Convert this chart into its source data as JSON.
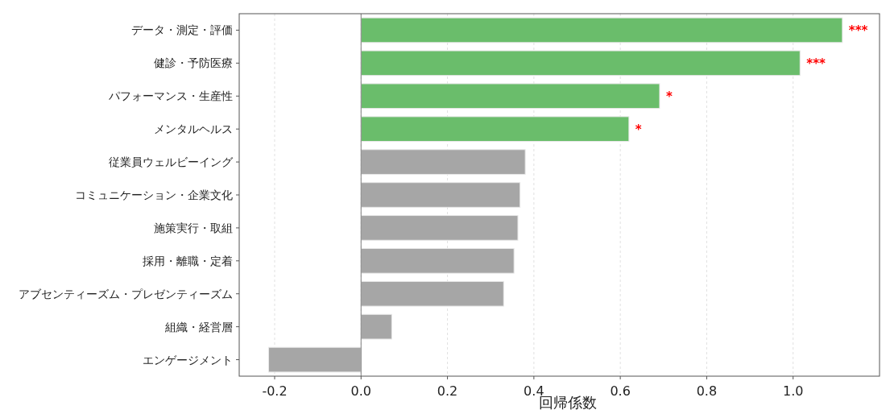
{
  "chart_data": {
    "type": "bar",
    "orientation": "horizontal",
    "xlabel": "回帰係数",
    "categories": [
      "データ・測定・評価",
      "健診・予防医療",
      "パフォーマンス・生産性",
      "メンタルヘルス",
      "従業員ウェルビーイング",
      "コミュニケーション・企業文化",
      "施策実行・取組",
      "採用・離職・定着",
      "アブセンティーズム・プレゼンティーズム",
      "組織・経営層",
      "エンゲージメント"
    ],
    "values": [
      1.114,
      1.016,
      0.691,
      0.62,
      0.38,
      0.368,
      0.363,
      0.354,
      0.33,
      0.071,
      -0.214
    ],
    "colors": [
      "#6abd6b",
      "#6abd6b",
      "#6abd6b",
      "#6abd6b",
      "#a6a6a6",
      "#a6a6a6",
      "#a6a6a6",
      "#a6a6a6",
      "#a6a6a6",
      "#a6a6a6",
      "#a6a6a6"
    ],
    "xlim": [
      -0.282,
      1.2
    ],
    "xticks": [
      {
        "value": -0.2,
        "label": "-0.2"
      },
      {
        "value": 0,
        "label": "0.0"
      },
      {
        "value": 0.2,
        "label": "0.2"
      },
      {
        "value": 0.4,
        "label": "0.4"
      },
      {
        "value": 0.6,
        "label": "0.6"
      },
      {
        "value": 0.8,
        "label": "0.8"
      },
      {
        "value": 1,
        "label": "1.0"
      }
    ],
    "ref_lines": [
      {
        "axis": "x",
        "value": 0,
        "color": "#808080"
      }
    ],
    "grid": "x",
    "annotations": [
      {
        "text": "***",
        "x": 1.114,
        "y": "データ・測定・評価"
      },
      {
        "text": "***",
        "x": 1.016,
        "y": "健診・予防医療"
      },
      {
        "text": "*",
        "x": 0.691,
        "y": "パフォーマンス・生産性"
      },
      {
        "text": "*",
        "x": 0.62,
        "y": "メンタルヘルス"
      }
    ]
  }
}
